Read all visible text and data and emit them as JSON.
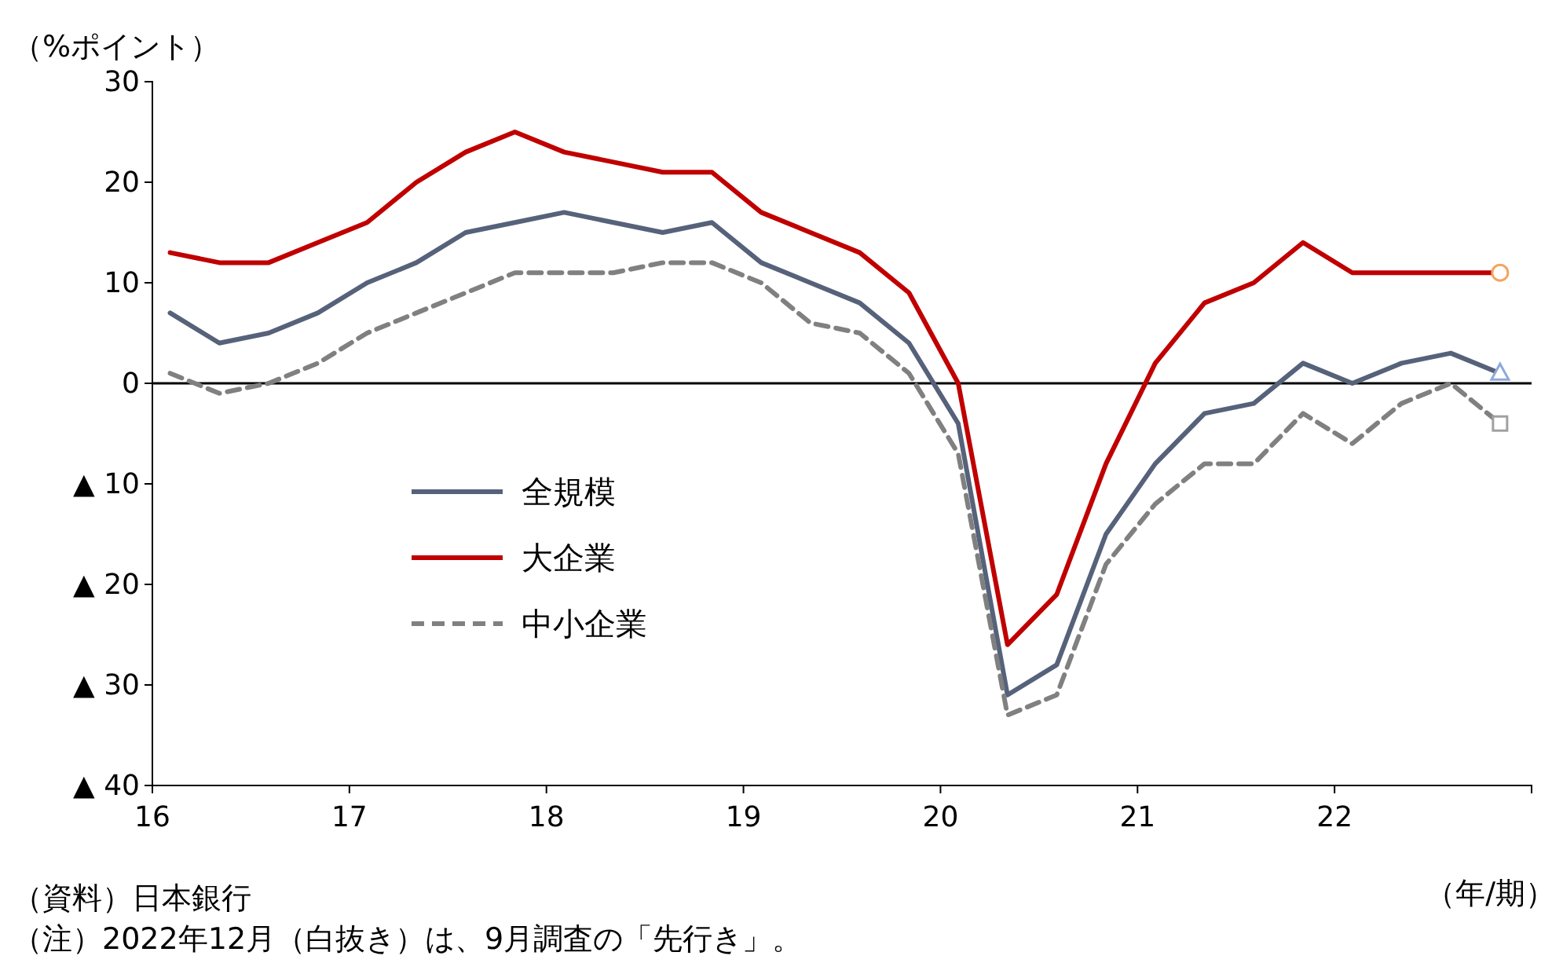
{
  "chart_data": {
    "type": "line",
    "ylabel": "（%ポイント）",
    "xlabel": "（年/期）",
    "x": [
      16.09,
      16.34,
      16.59,
      16.84,
      17.09,
      17.34,
      17.59,
      17.84,
      18.09,
      18.34,
      18.59,
      18.84,
      19.09,
      19.34,
      19.59,
      19.84,
      20.09,
      20.34,
      20.59,
      20.84,
      21.09,
      21.34,
      21.59,
      21.84,
      22.09,
      22.34,
      22.59,
      22.84
    ],
    "xlim": [
      16,
      23
    ],
    "xticks": [
      16,
      17,
      18,
      19,
      20,
      21,
      22
    ],
    "ylim": [
      -40,
      30
    ],
    "yticks": [
      {
        "value": -40,
        "label": "▲ 40"
      },
      {
        "value": -30,
        "label": "▲ 30"
      },
      {
        "value": -20,
        "label": "▲ 20"
      },
      {
        "value": -10,
        "label": "▲ 10"
      },
      0,
      10,
      20,
      30
    ],
    "grid": false,
    "legend": "left",
    "marker": "none",
    "ref_lines": [
      {
        "axis": "y",
        "value": 0,
        "color": "#000000"
      }
    ],
    "series": [
      {
        "name": "全規模",
        "color": "#56627a",
        "line_style": "solid",
        "values": [
          7,
          4,
          5,
          7,
          10,
          12,
          15,
          16,
          17,
          16,
          15,
          16,
          12,
          10,
          8,
          4,
          -4,
          -31,
          -28,
          -15,
          -8,
          -3,
          -2,
          2,
          0,
          2,
          3,
          1
        ]
      },
      {
        "name": "大企業",
        "color": "#c00000",
        "line_style": "solid",
        "values": [
          13,
          12,
          12,
          14,
          16,
          20,
          23,
          25,
          23,
          22,
          21,
          21,
          17,
          15,
          13,
          9,
          0,
          -26,
          -21,
          -8,
          2,
          8,
          10,
          14,
          11,
          11,
          11,
          11
        ]
      },
      {
        "name": "中小企業",
        "color": "#808080",
        "line_style": "dashed",
        "values": [
          1,
          -1,
          0,
          2,
          5,
          7,
          9,
          11,
          11,
          11,
          12,
          12,
          10,
          6,
          5,
          1,
          -7,
          -33,
          -31,
          -18,
          -12,
          -8,
          -8,
          -3,
          -6,
          -2,
          0,
          -4
        ]
      },
      {
        "type": "scatter",
        "marker": "triangle",
        "color": "#8ea9db",
        "values": [
          null,
          null,
          null,
          null,
          null,
          null,
          null,
          null,
          null,
          null,
          null,
          null,
          null,
          null,
          null,
          null,
          null,
          null,
          null,
          null,
          null,
          null,
          null,
          null,
          null,
          null,
          null,
          1
        ]
      },
      {
        "type": "scatter",
        "marker": "circle",
        "color": "#f4a460",
        "values": [
          null,
          null,
          null,
          null,
          null,
          null,
          null,
          null,
          null,
          null,
          null,
          null,
          null,
          null,
          null,
          null,
          null,
          null,
          null,
          null,
          null,
          null,
          null,
          null,
          null,
          null,
          null,
          11
        ]
      },
      {
        "type": "scatter",
        "marker": "square",
        "color": "#a0a0a0",
        "values": [
          null,
          null,
          null,
          null,
          null,
          null,
          null,
          null,
          null,
          null,
          null,
          null,
          null,
          null,
          null,
          null,
          null,
          null,
          null,
          null,
          null,
          null,
          null,
          null,
          null,
          null,
          null,
          -4
        ]
      }
    ],
    "annotations": [
      "（資料）日本銀行",
      "（注）2022年12月（白抜き）は、9月調査の「先行き」。"
    ]
  }
}
